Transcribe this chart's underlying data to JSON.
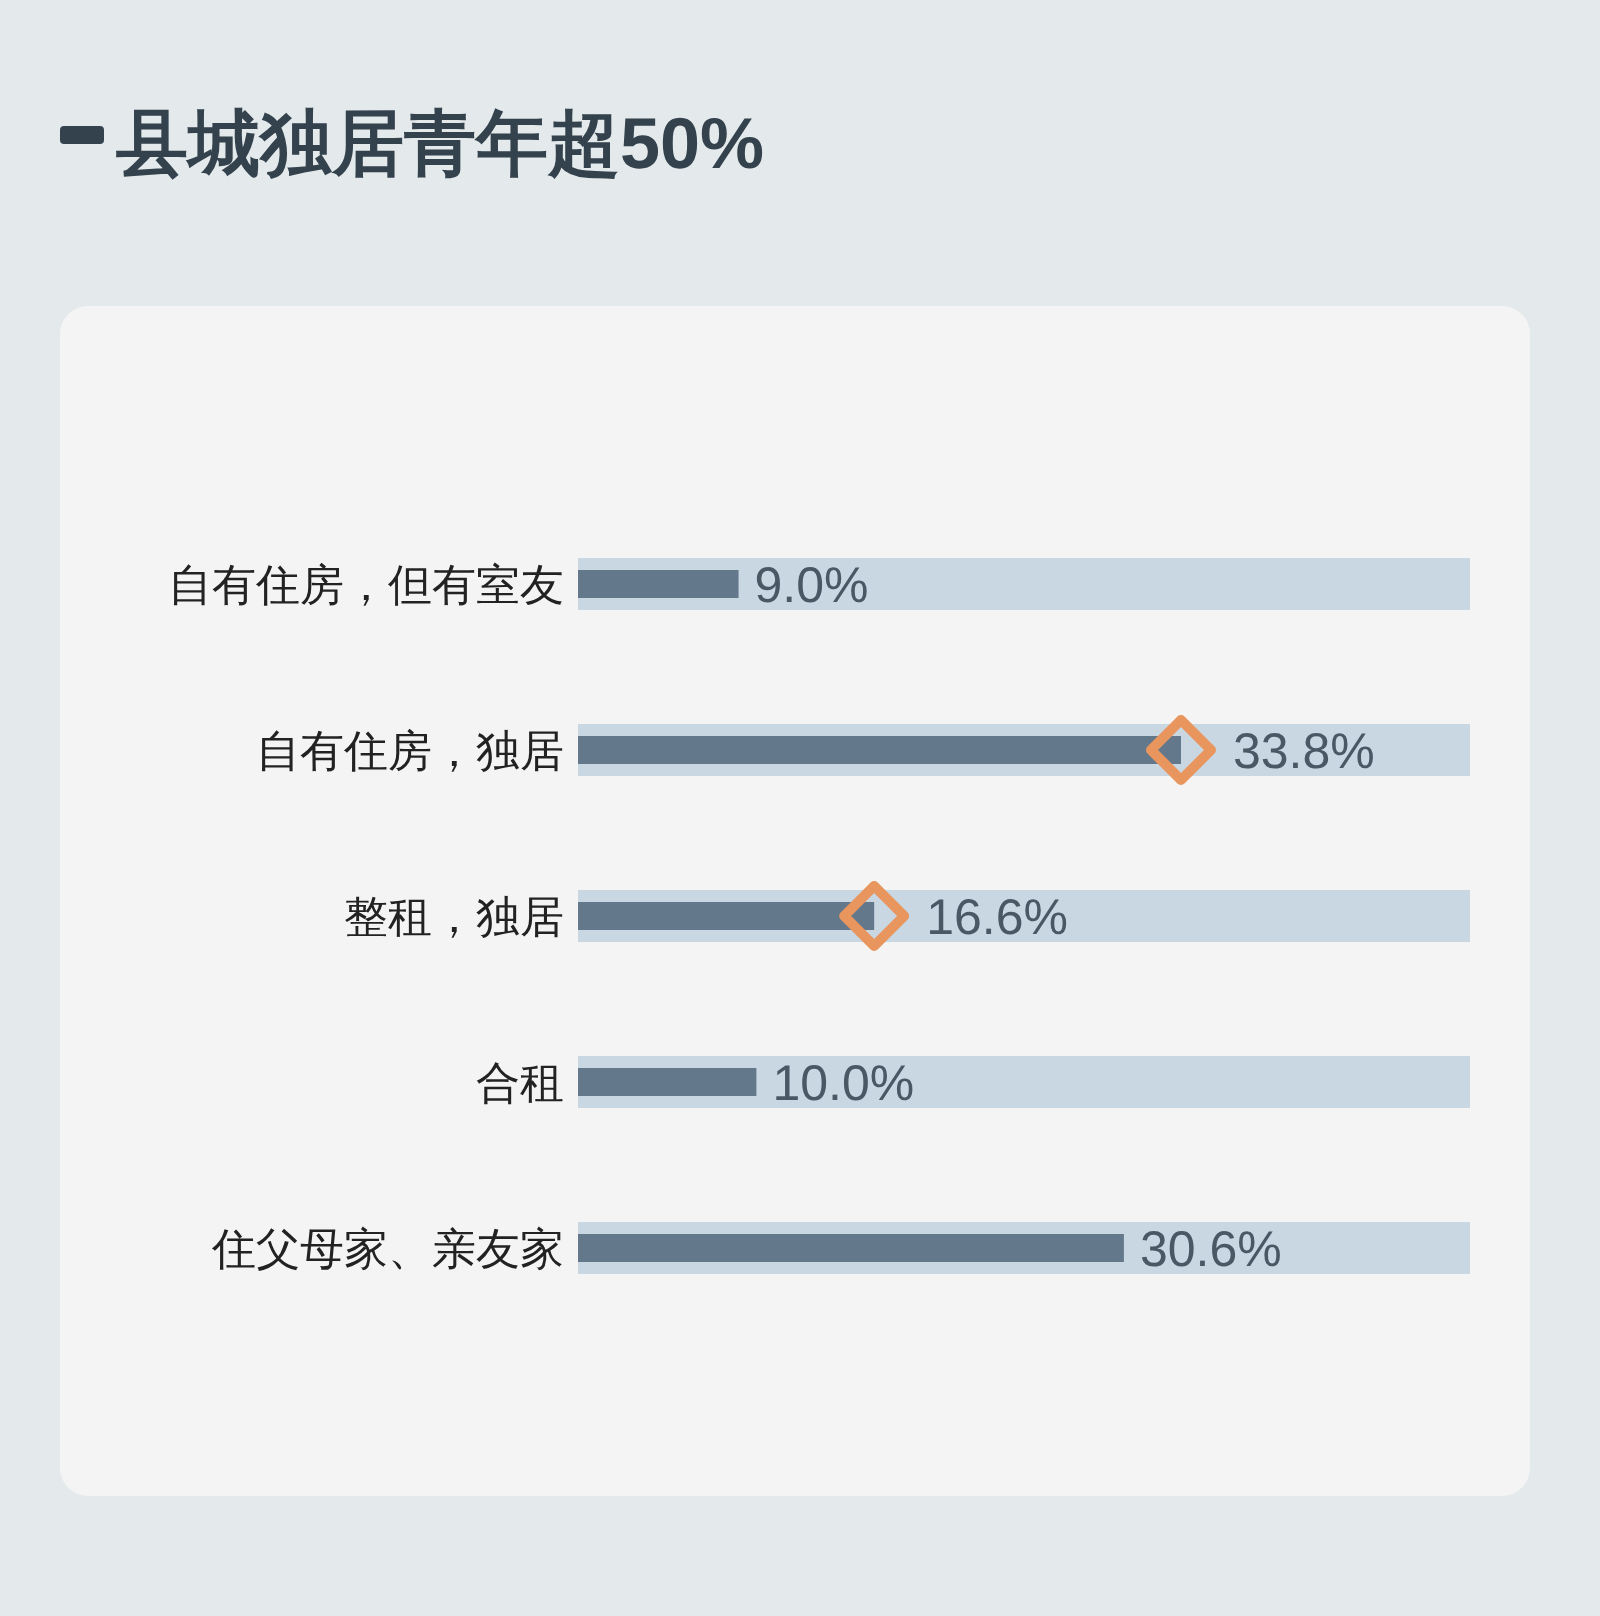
{
  "chart_data": {
    "type": "bar",
    "title": "县城独居青年超50%",
    "orientation": "horizontal",
    "categories": [
      "自有住房，但有室友",
      "自有住房，独居",
      "整租，独居",
      "合租",
      "住父母家、亲友家"
    ],
    "series": [
      {
        "type": "bar",
        "color": "#c9d7e3",
        "values": [
          50,
          50,
          50,
          50,
          50
        ]
      },
      {
        "type": "bar",
        "color": "#64788c",
        "values": [
          9.0,
          33.8,
          16.6,
          10.0,
          30.6
        ],
        "value_labels": [
          "9.0%",
          "33.8%",
          "16.6%",
          "10.0%",
          "30.6%"
        ]
      },
      {
        "type": "scatter",
        "x": [
          "自有住房，独居",
          "整租，独居"
        ],
        "values": [
          33.8,
          16.6
        ],
        "color": "#e8955e",
        "marker": "diamond"
      }
    ]
  }
}
